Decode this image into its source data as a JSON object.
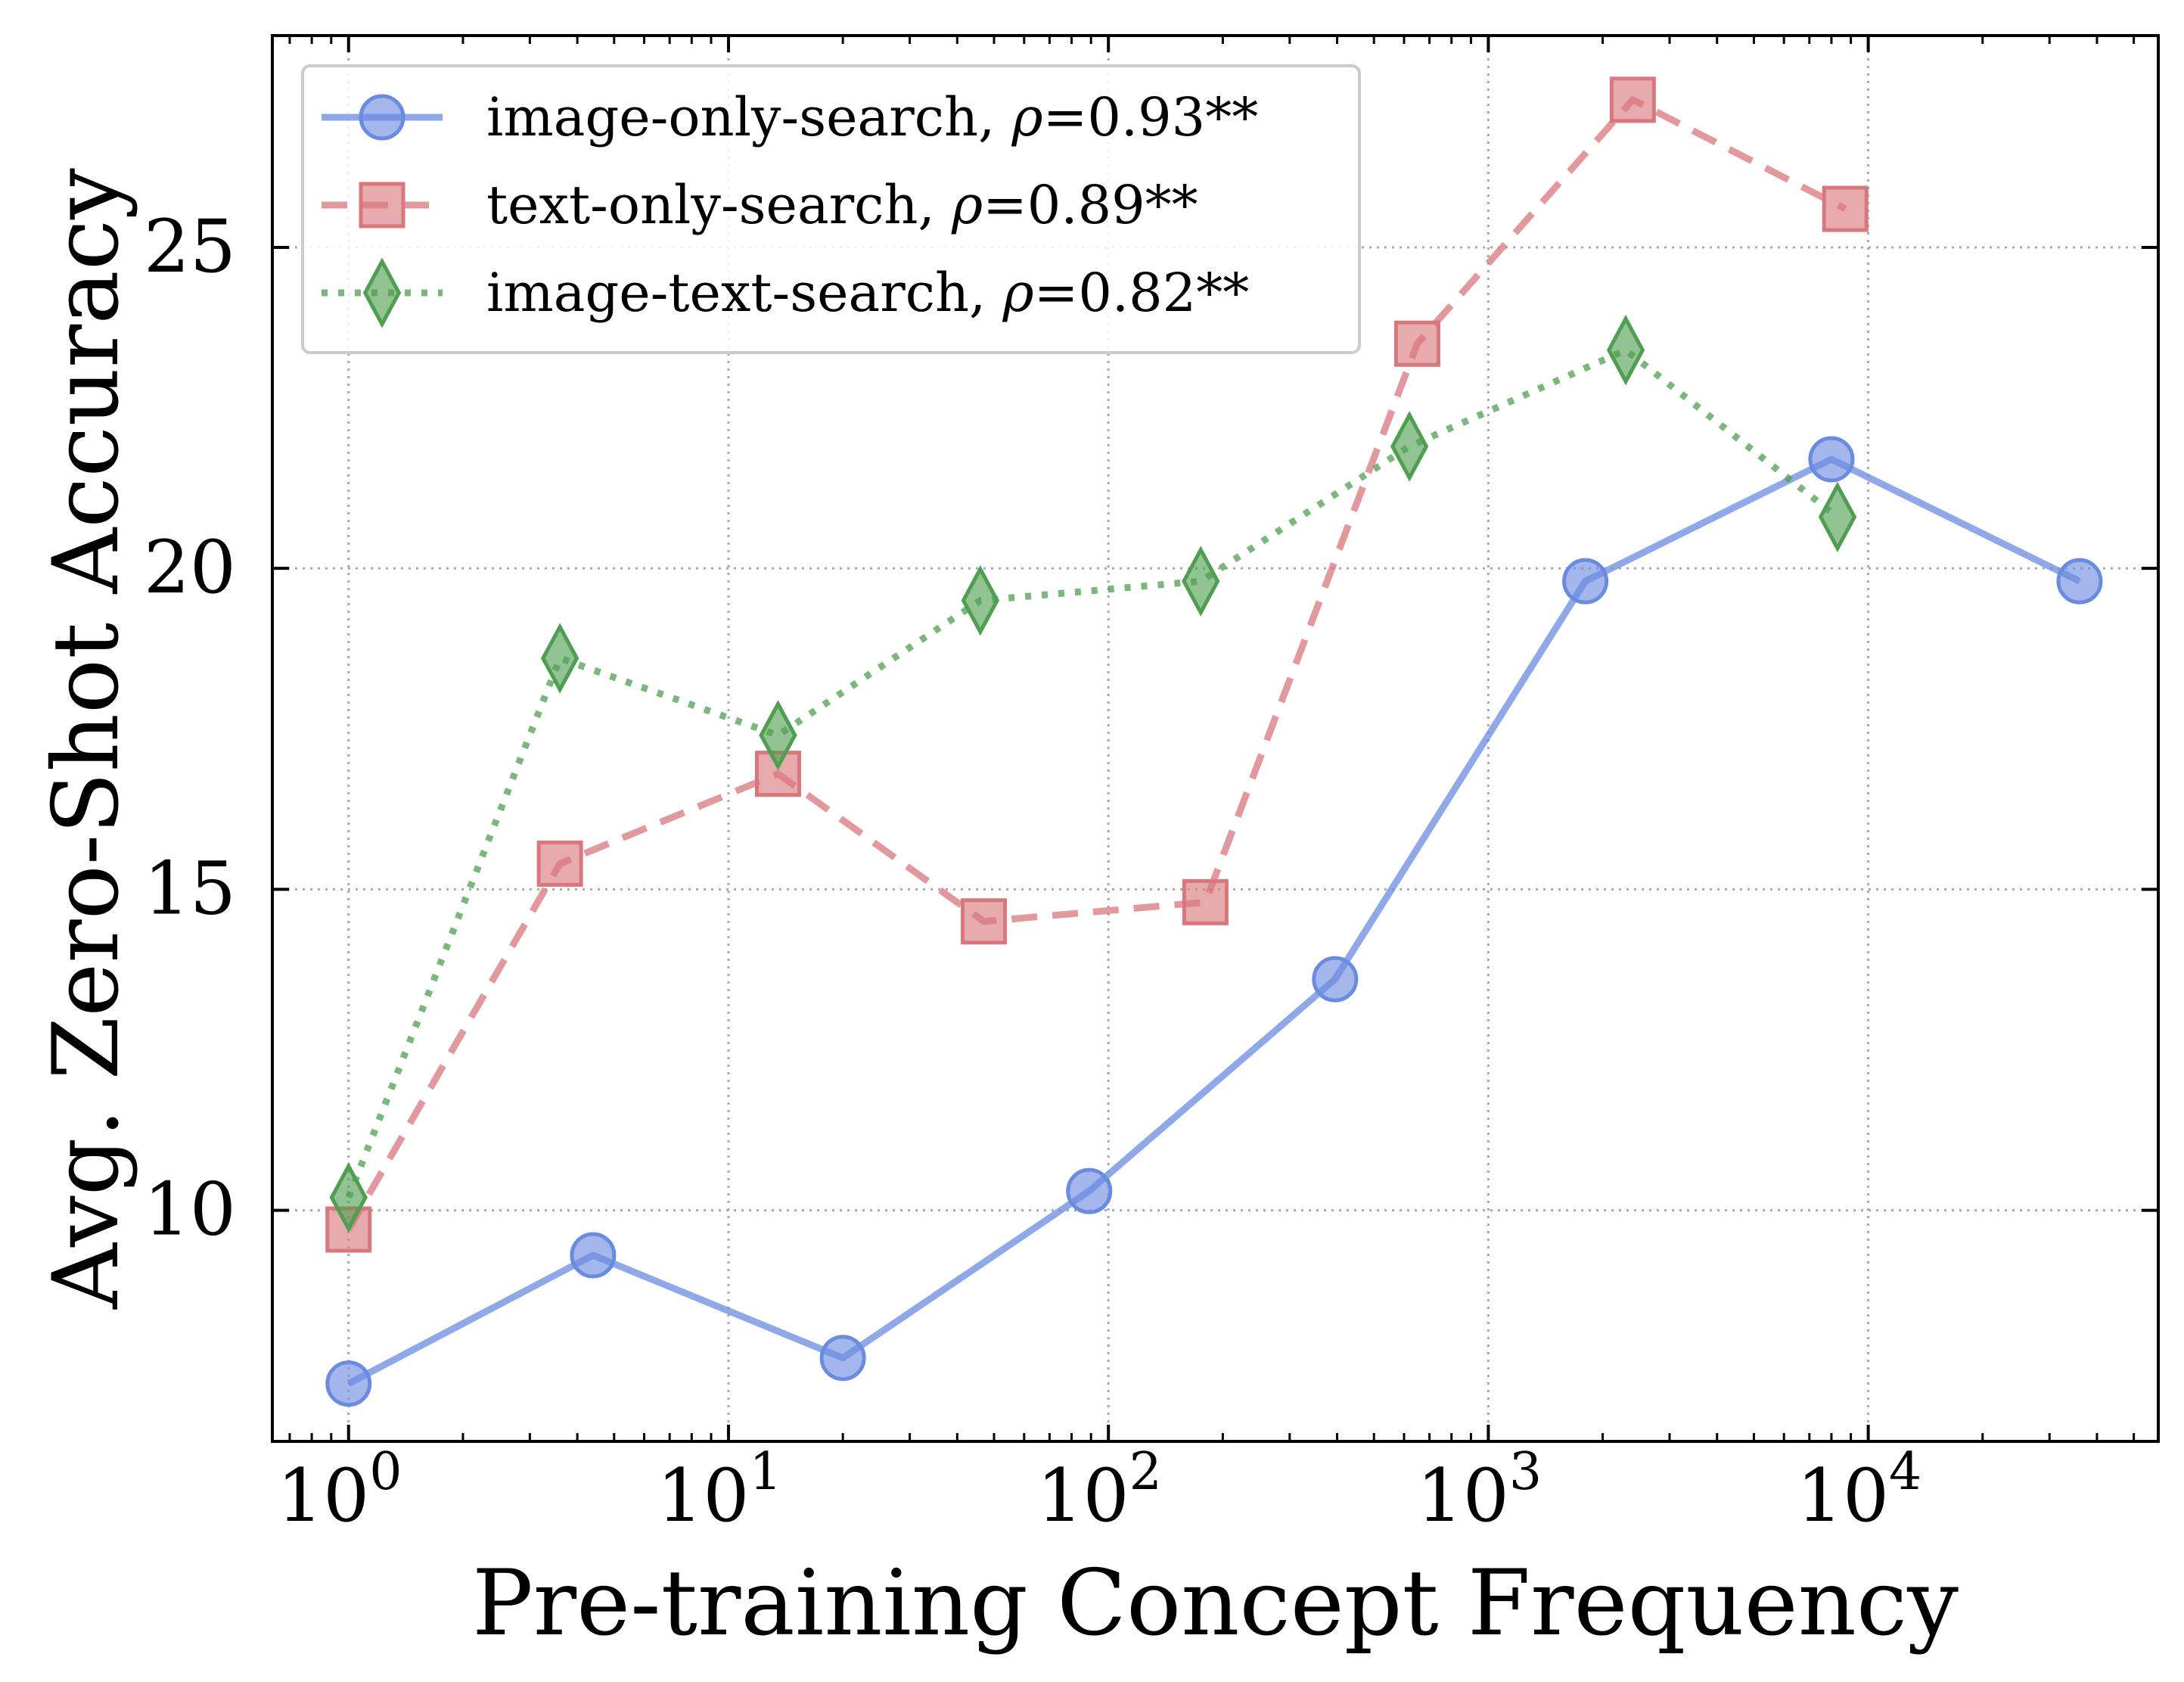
{
  "chart_data": {
    "type": "line",
    "xlabel": "Pre-training Concept Frequency",
    "ylabel": "Avg. Zero-Shot Accuracy",
    "xscale": "log",
    "xlim": [
      0.63,
      58000
    ],
    "ylim": [
      6.4,
      28.3
    ],
    "x_ticks": [
      {
        "value": 1,
        "base": "10",
        "exp": "0"
      },
      {
        "value": 10,
        "base": "10",
        "exp": "1"
      },
      {
        "value": 100,
        "base": "10",
        "exp": "2"
      },
      {
        "value": 1000,
        "base": "10",
        "exp": "3"
      },
      {
        "value": 10000,
        "base": "10",
        "exp": "4"
      }
    ],
    "y_ticks": [
      10,
      15,
      20,
      25
    ],
    "grid": true,
    "legend_position": "top-left",
    "series": [
      {
        "name": "image-only-search",
        "rho": "0.93**",
        "color": "#6a8be0",
        "marker": "circle",
        "linestyle": "solid",
        "points": [
          [
            1,
            7.3
          ],
          [
            4.4,
            9.3
          ],
          [
            20,
            7.7
          ],
          [
            89,
            10.3
          ],
          [
            395,
            13.6
          ],
          [
            1800,
            19.8
          ],
          [
            8000,
            21.7
          ],
          [
            36000,
            19.8
          ]
        ]
      },
      {
        "name": "text-only-search",
        "rho": "0.89**",
        "color": "#d8777c",
        "marker": "square",
        "linestyle": "dashed",
        "points": [
          [
            1,
            9.7
          ],
          [
            3.6,
            15.4
          ],
          [
            13.5,
            16.8
          ],
          [
            47,
            14.5
          ],
          [
            180,
            14.8
          ],
          [
            650,
            23.5
          ],
          [
            2400,
            27.3
          ],
          [
            8700,
            25.6
          ]
        ]
      },
      {
        "name": "image-text-search",
        "rho": "0.82**",
        "color": "#4f9e51",
        "marker": "diamond",
        "linestyle": "dotted",
        "points": [
          [
            1,
            10.2
          ],
          [
            3.6,
            18.6
          ],
          [
            13.5,
            17.4
          ],
          [
            46,
            19.5
          ],
          [
            175,
            19.8
          ],
          [
            620,
            21.9
          ],
          [
            2300,
            23.4
          ],
          [
            8300,
            20.8
          ]
        ]
      }
    ]
  }
}
